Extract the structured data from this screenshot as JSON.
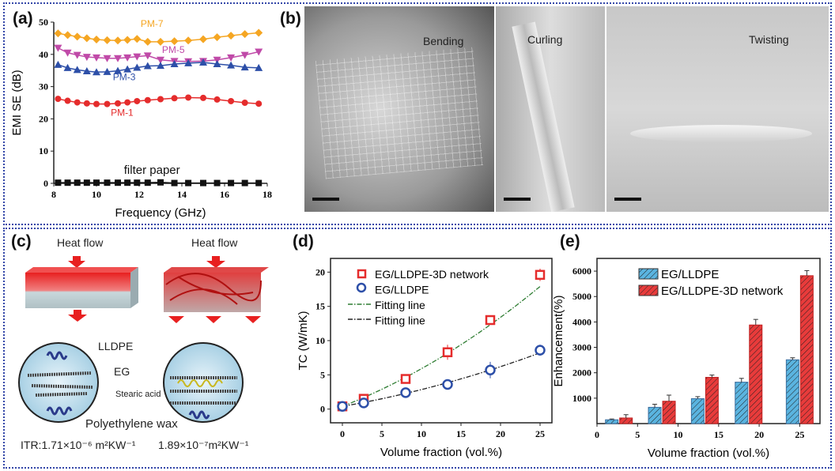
{
  "panels": {
    "a": "(a)",
    "b": "(b)",
    "c": "(c)",
    "d": "(d)",
    "e": "(e)"
  },
  "photos": {
    "bending": "Bending",
    "curling": "Curling",
    "twisting": "Twisting"
  },
  "schematic": {
    "heat_flow_left": "Heat flow",
    "heat_flow_right": "Heat flow",
    "lldpe": "LLDPE",
    "eg": "EG",
    "stearic": "Stearic acid",
    "wax": "Polyethylene wax",
    "itr_left": "ITR:1.71×10⁻⁶ m²KW⁻¹",
    "itr_right": "1.89×10⁻⁷m²KW⁻¹"
  },
  "chart_data": [
    {
      "type": "line",
      "title": "",
      "xlabel": "Frequency (GHz)",
      "ylabel": "EMI SE (dB)",
      "xlim": [
        8,
        18
      ],
      "ylim": [
        0,
        50
      ],
      "xticks": [
        8,
        10,
        12,
        14,
        16,
        18
      ],
      "yticks": [
        0,
        10,
        20,
        30,
        40,
        50
      ],
      "x": [
        8.2,
        8.65,
        9.1,
        9.55,
        10,
        10.5,
        11,
        11.45,
        11.9,
        12.4,
        13,
        13.65,
        14.3,
        15,
        15.65,
        16.3,
        16.95,
        17.6
      ],
      "series": [
        {
          "name": "PM-7",
          "color": "#f5a623",
          "marker": "diamond",
          "values": [
            46.5,
            46,
            45.5,
            45,
            44.6,
            44.4,
            44.3,
            44.5,
            44.8,
            43.9,
            43.9,
            44.1,
            44.3,
            44.7,
            45.3,
            45.8,
            46.3,
            46.7
          ]
        },
        {
          "name": "PM-5",
          "color": "#c04aa8",
          "marker": "tri-down",
          "values": [
            42,
            40.5,
            39.8,
            39.2,
            39,
            38.8,
            38.8,
            39,
            39.3,
            39.6,
            38.3,
            37.9,
            37.8,
            37.9,
            38.3,
            39,
            39.8,
            40.8
          ]
        },
        {
          "name": "PM-3",
          "color": "#2d4fa8",
          "marker": "tri-up",
          "values": [
            36.8,
            35.8,
            35.2,
            34.8,
            34.5,
            34.6,
            34.9,
            35.4,
            35.9,
            36.4,
            36.5,
            37,
            37.3,
            37.5,
            37,
            36.6,
            36,
            35.8
          ]
        },
        {
          "name": "PM-1",
          "color": "#e52c2c",
          "marker": "circle",
          "values": [
            26.2,
            25.6,
            25.1,
            24.8,
            24.6,
            24.6,
            24.8,
            25.1,
            25.5,
            25.8,
            26.1,
            26.4,
            26.6,
            26.5,
            26,
            25.5,
            25,
            24.7
          ]
        },
        {
          "name": "filter paper",
          "color": "#111111",
          "marker": "square",
          "values": [
            0.2,
            0.2,
            0.2,
            0.2,
            0.2,
            0.2,
            0.2,
            0.2,
            0.2,
            0.2,
            0.3,
            0.1,
            0.1,
            0.1,
            0.1,
            0.1,
            0.1,
            0.1
          ]
        }
      ]
    },
    {
      "type": "scatter",
      "xlabel": "Volume fraction (vol.%)",
      "ylabel": "TC (W/mK)",
      "xlim": [
        -1.5,
        26.5
      ],
      "ylim": [
        -2,
        22
      ],
      "xticks": [
        0,
        5,
        10,
        15,
        20,
        25
      ],
      "yticks": [
        0,
        5,
        10,
        15,
        20
      ],
      "x": [
        0,
        2.7,
        8,
        13.3,
        18.7,
        25
      ],
      "series": [
        {
          "name": "EG/LLDPE-3D network",
          "color": "#e52c2c",
          "marker": "square",
          "values": [
            0.4,
            1.5,
            4.4,
            8.3,
            13,
            19.6
          ],
          "errors": [
            0.5,
            0.3,
            0.5,
            1.1,
            0.5,
            0.9
          ]
        },
        {
          "name": "EG/LLDPE",
          "color": "#2d4fa8",
          "marker": "circle",
          "values": [
            0.4,
            0.9,
            2.4,
            3.6,
            5.7,
            8.6
          ],
          "errors": [
            0.6,
            0.3,
            0.6,
            0.3,
            1.2,
            0.8
          ]
        },
        {
          "name": "Fitting line",
          "color": "#2e7d32",
          "fit": [
            0.4,
            0.45,
            0.01
          ]
        },
        {
          "name": "Fitting line",
          "color": "#222222",
          "fit": [
            0.4,
            0.2,
            0.0045
          ]
        }
      ]
    },
    {
      "type": "bar",
      "xlabel": "Volume fraction (vol.%)",
      "ylabel": "Enhancement(%)",
      "xlim": [
        0,
        27.5
      ],
      "ylim": [
        0,
        6500
      ],
      "xticks": [
        0,
        5,
        10,
        15,
        20,
        25
      ],
      "yticks": [
        1000,
        2000,
        3000,
        4000,
        5000,
        6000
      ],
      "x": [
        2.7,
        8,
        13.3,
        18.7,
        25
      ],
      "series": [
        {
          "name": "EG/LLDPE",
          "color": "#5ab4e0",
          "values": [
            150,
            640,
            980,
            1630,
            2510
          ],
          "errors": [
            30,
            120,
            80,
            150,
            80
          ]
        },
        {
          "name": "EG/LLDPE-3D network",
          "color": "#e83b3b",
          "values": [
            220,
            880,
            1820,
            3880,
            5820
          ],
          "errors": [
            130,
            240,
            90,
            220,
            200
          ]
        }
      ]
    }
  ]
}
